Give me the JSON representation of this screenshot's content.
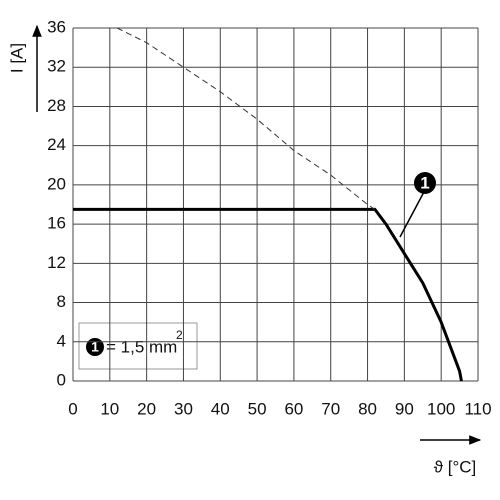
{
  "chart_data": {
    "type": "line",
    "ylabel": "I [A]",
    "xlabel": "ϑ [°C]",
    "xlim": [
      0,
      110
    ],
    "xticks": [
      0,
      10,
      20,
      30,
      40,
      50,
      60,
      70,
      80,
      90,
      100,
      110
    ],
    "ylim": [
      0,
      36
    ],
    "yticks": [
      0,
      4,
      8,
      12,
      16,
      20,
      24,
      28,
      32,
      36
    ],
    "grid": true,
    "series": [
      {
        "name": "1",
        "color": "#000000",
        "style": "solid",
        "x": [
          0,
          82,
          85,
          90,
          95,
          100,
          103,
          105,
          105.5
        ],
        "values": [
          17.5,
          17.5,
          16,
          13,
          10,
          6,
          3,
          1,
          0
        ]
      },
      {
        "color": "#333333",
        "style": "dashed",
        "x": [
          12,
          20,
          30,
          40,
          50,
          60,
          70,
          80,
          82
        ],
        "values": [
          36,
          34.5,
          32,
          29.5,
          26.7,
          23.5,
          21,
          18,
          17.5
        ]
      }
    ],
    "annotation": {
      "marker": "1",
      "text": "= 1,5 mm",
      "superscript": "2"
    }
  }
}
